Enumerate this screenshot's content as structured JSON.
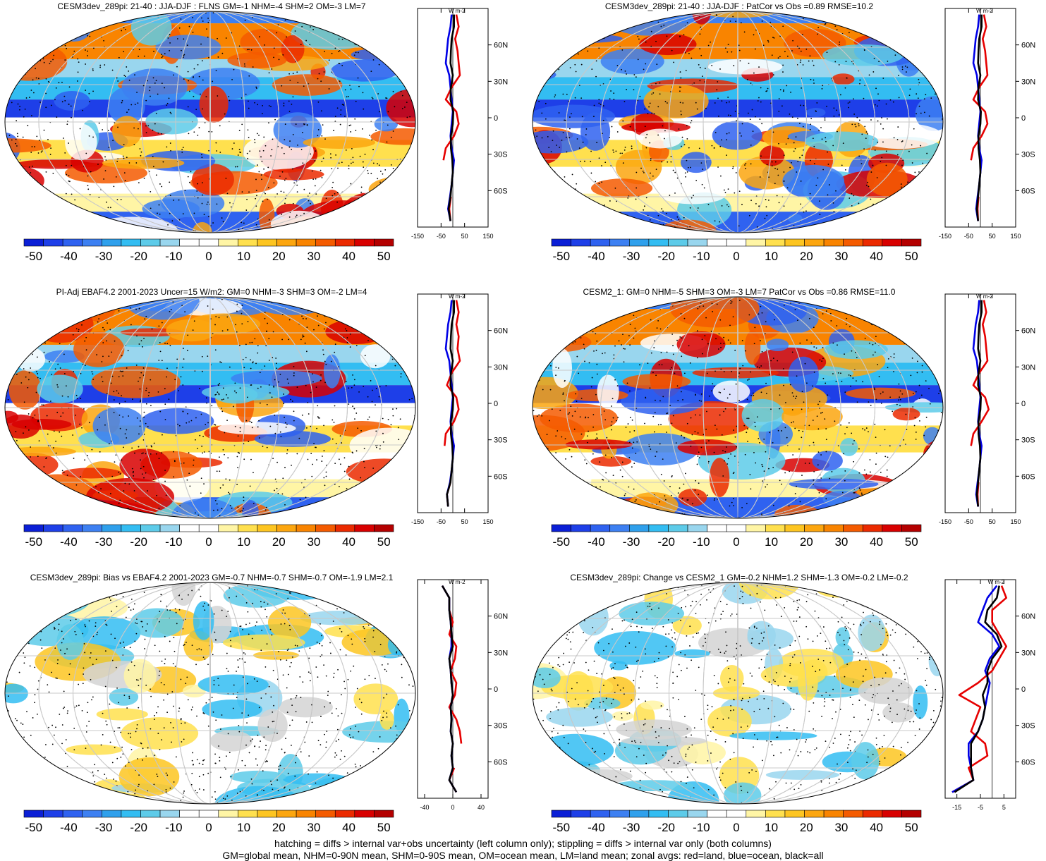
{
  "colorbar": {
    "ticks": [
      "-50",
      "-40",
      "-30",
      "-20",
      "-10",
      "0",
      "10",
      "20",
      "30",
      "40",
      "50"
    ],
    "colors": [
      "#0b1fd6",
      "#1e3fe8",
      "#2f62f0",
      "#3d80f2",
      "#2fa0ec",
      "#33bdf2",
      "#5dcbe9",
      "#99d6ee",
      "#ffffff",
      "#ffffff",
      "#fff5a5",
      "#ffe04e",
      "#fdc521",
      "#fca60f",
      "#f98400",
      "#f45b00",
      "#eb2a00",
      "#d80000",
      "#b40000"
    ]
  },
  "footer": {
    "line1": "hatching = diffs > internal var+obs uncertainty (left column only); stippling = diffs > internal var only (both columns)",
    "line2": "GM=global mean, NHM=0-90N mean, SHM=0-90S mean, OM=ocean mean, LM=land mean; zonal avgs: red=land, blue=ocean, black=all"
  },
  "chart_data": [
    {
      "type": "map",
      "title": "CESM3dev_289pi: 21-40 : JJA-DJF : FLNS GM=-1 NHM=-4 SHM=2 OM=-3 LM=7",
      "zonal_unit": "W m-2",
      "zonal_ylim": [
        -90,
        90
      ],
      "zonal_xlim": [
        -150,
        150
      ],
      "zonal_xticks": [
        "-150",
        "-50",
        "50",
        "150"
      ],
      "lat_ticks": [
        "60N",
        "30N",
        "0",
        "30S",
        "60S"
      ],
      "zonal": {
        "lat": [
          -85,
          -75,
          -65,
          -55,
          -45,
          -35,
          -25,
          -15,
          -5,
          5,
          15,
          25,
          35,
          45,
          55,
          65,
          75,
          85
        ],
        "land": [
          -10,
          -15,
          -8,
          null,
          null,
          -40,
          -30,
          5,
          25,
          15,
          -30,
          -5,
          30,
          25,
          20,
          10,
          25,
          15
        ],
        "ocean": [
          -10,
          -20,
          -12,
          -5,
          0,
          5,
          -5,
          -10,
          -5,
          0,
          -5,
          -10,
          -15,
          -30,
          -25,
          -20,
          -10,
          -5
        ],
        "all": [
          -10,
          -18,
          -10,
          -5,
          0,
          -2,
          -8,
          -8,
          0,
          2,
          -10,
          -8,
          0,
          -10,
          -8,
          -5,
          5,
          5
        ]
      }
    },
    {
      "type": "map",
      "title": "CESM3dev_289pi: 21-40 : JJA-DJF : PatCor vs Obs =0.89 RMSE=10.2",
      "zonal_unit": "W m-2",
      "zonal_ylim": [
        -90,
        90
      ],
      "zonal_xlim": [
        -150,
        150
      ],
      "zonal_xticks": [
        "-150",
        "-50",
        "50",
        "150"
      ],
      "lat_ticks": [
        "60N",
        "30N",
        "0",
        "30S",
        "60S"
      ],
      "zonal": {
        "lat": [
          -85,
          -75,
          -65,
          -55,
          -45,
          -35,
          -25,
          -15,
          -5,
          5,
          15,
          25,
          35,
          45,
          55,
          65,
          75,
          85
        ],
        "land": [
          -10,
          -12,
          -8,
          null,
          null,
          -40,
          -30,
          5,
          30,
          20,
          -30,
          -5,
          30,
          25,
          20,
          10,
          25,
          15
        ],
        "ocean": [
          -10,
          -18,
          -12,
          -5,
          0,
          5,
          -5,
          -10,
          -5,
          0,
          -5,
          -10,
          -15,
          -30,
          -25,
          -20,
          -10,
          -5
        ],
        "all": [
          -10,
          -15,
          -10,
          -5,
          0,
          -2,
          -8,
          -8,
          0,
          2,
          -10,
          -8,
          0,
          -10,
          -8,
          -5,
          5,
          5
        ]
      }
    },
    {
      "type": "map",
      "title": "PI-Adj EBAF4.2 2001-2023 Uncer=15 W/m2: GM=0 NHM=-3 SHM=3 OM=-2 LM=4",
      "zonal_unit": "W m-2",
      "zonal_ylim": [
        -90,
        90
      ],
      "zonal_xlim": [
        -150,
        150
      ],
      "zonal_xticks": [
        "-150",
        "-50",
        "50",
        "150"
      ],
      "lat_ticks": [
        "60N",
        "30N",
        "0",
        "30S",
        "60S"
      ],
      "zonal": {
        "lat": [
          -85,
          -75,
          -65,
          -55,
          -45,
          -35,
          -25,
          -15,
          -5,
          5,
          15,
          25,
          35,
          45,
          55,
          65,
          75,
          85
        ],
        "land": [
          -20,
          -25,
          -10,
          null,
          null,
          -35,
          -30,
          5,
          25,
          15,
          -25,
          -5,
          30,
          20,
          25,
          15,
          25,
          15
        ],
        "ocean": [
          -20,
          -25,
          -12,
          -5,
          0,
          5,
          -5,
          -10,
          -5,
          0,
          -5,
          -10,
          -15,
          -30,
          -25,
          -20,
          -10,
          -5
        ],
        "all": [
          -20,
          -25,
          -10,
          -5,
          0,
          -2,
          -8,
          -8,
          0,
          2,
          -10,
          -8,
          0,
          -10,
          -8,
          -5,
          5,
          5
        ]
      }
    },
    {
      "type": "map",
      "title": "CESM2_1: GM=0 NHM=-5 SHM=3 OM=-3 LM=7 PatCor vs Obs =0.86 RMSE=11.0",
      "zonal_unit": "W m-2",
      "zonal_ylim": [
        -90,
        90
      ],
      "zonal_xlim": [
        -150,
        150
      ],
      "zonal_xticks": [
        "-150",
        "-50",
        "50",
        "150"
      ],
      "lat_ticks": [
        "60N",
        "30N",
        "0",
        "30S",
        "60S"
      ],
      "zonal": {
        "lat": [
          -85,
          -75,
          -65,
          -55,
          -45,
          -35,
          -25,
          -15,
          -5,
          5,
          15,
          25,
          35,
          45,
          55,
          65,
          75,
          85
        ],
        "land": [
          -10,
          -12,
          -8,
          null,
          null,
          -40,
          -30,
          5,
          35,
          20,
          -30,
          -5,
          30,
          25,
          20,
          10,
          25,
          15
        ],
        "ocean": [
          -10,
          -18,
          -12,
          -5,
          0,
          5,
          -5,
          -10,
          -5,
          0,
          -5,
          -10,
          -15,
          -30,
          -25,
          -20,
          -10,
          -5
        ],
        "all": [
          -10,
          -15,
          -10,
          -5,
          0,
          -2,
          -8,
          -8,
          0,
          2,
          -10,
          -8,
          0,
          -10,
          -8,
          -5,
          5,
          5
        ]
      }
    },
    {
      "type": "map",
      "title": "CESM3dev_289pi: Bias vs EBAF4.2 2001-2023 GM=-0.7 NHM=-0.7 SHM=-0.7 OM=-1.9 LM=2.1",
      "zonal_unit": "W m-2",
      "zonal_ylim": [
        -90,
        90
      ],
      "zonal_xlim": [
        -50,
        50
      ],
      "zonal_xticks": [
        "-40",
        "0",
        "40"
      ],
      "lat_ticks": [
        "60N",
        "30N",
        "0",
        "30S",
        "60S"
      ],
      "zonal": {
        "lat": [
          -85,
          -75,
          -65,
          -55,
          -45,
          -35,
          -25,
          -15,
          -5,
          5,
          15,
          25,
          35,
          45,
          55,
          65,
          75,
          85
        ],
        "land": [
          5,
          -5,
          2,
          null,
          12,
          10,
          5,
          -5,
          3,
          5,
          -3,
          3,
          5,
          -5,
          0,
          -5,
          -5,
          -15
        ],
        "ocean": [
          5,
          -5,
          0,
          -2,
          0,
          -3,
          -2,
          -3,
          0,
          -2,
          -3,
          -5,
          -2,
          -2,
          -3,
          -5,
          -5,
          -15
        ],
        "all": [
          5,
          -5,
          0,
          -2,
          0,
          -3,
          -2,
          -3,
          0,
          -2,
          -3,
          -5,
          0,
          -2,
          -3,
          -5,
          -5,
          -15
        ]
      }
    },
    {
      "type": "map",
      "title": "CESM3dev_289pi: Change vs CESM2_1 GM=-0.2 NHM=1.2 SHM=-1.3 OM=-0.2 LM=-0.2",
      "zonal_unit": "W m-2",
      "zonal_ylim": [
        -90,
        90
      ],
      "zonal_xlim": [
        -20,
        10
      ],
      "zonal_xticks": [
        "-15",
        "-5",
        "5"
      ],
      "lat_ticks": [
        "60N",
        "30N",
        "0",
        "30S",
        "60S"
      ],
      "zonal": {
        "lat": [
          -85,
          -75,
          -65,
          -55,
          -45,
          -35,
          -25,
          -15,
          -5,
          5,
          15,
          25,
          35,
          45,
          55,
          65,
          75,
          85
        ],
        "land": [
          -17,
          -8,
          -10,
          -2,
          -3,
          -9,
          -7,
          -5,
          -14,
          -6,
          0,
          3,
          6,
          3,
          0,
          0,
          6,
          4
        ],
        "ocean": [
          -17,
          -8,
          -9,
          -10,
          -10,
          -6,
          -4,
          -3,
          -2,
          -1,
          -3,
          -1,
          3,
          0,
          -6,
          -4,
          -2,
          2
        ],
        "all": [
          -16,
          -8,
          -9,
          -9,
          -9,
          -6,
          -4,
          -3,
          -4,
          -2,
          -2,
          0,
          4,
          2,
          -3,
          -2,
          2,
          3
        ]
      }
    }
  ]
}
